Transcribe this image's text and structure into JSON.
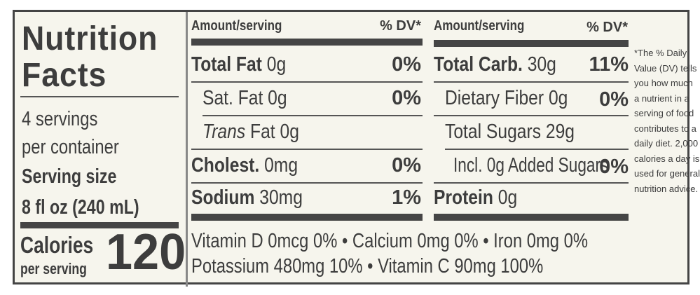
{
  "title_line1": "Nutrition",
  "title_line2": "Facts",
  "servings_line1": "4 servings",
  "servings_line2": "per container",
  "serving_size_label": "Serving size",
  "serving_size_value": "8 fl oz (240 mL)",
  "calories_label": "Calories",
  "calories_sub": "per serving",
  "calories_value": "120",
  "left_header": {
    "amount": "Amount/serving",
    "dv": "% DV*"
  },
  "right_header": {
    "amount": "Amount/serving",
    "dv": "% DV*"
  },
  "left_rows": [
    {
      "name": "Total Fat",
      "amount": "0g",
      "dv": "0%"
    },
    {
      "name": "Sat. Fat",
      "amount": "0g",
      "dv": "0%"
    },
    {
      "name_italic": "Trans",
      "name": "Fat",
      "amount": "0g",
      "dv": ""
    },
    {
      "name": "Cholest.",
      "amount": "0mg",
      "dv": "0%"
    },
    {
      "name": "Sodium",
      "amount": "30mg",
      "dv": "1%"
    }
  ],
  "right_rows": [
    {
      "name": "Total Carb.",
      "amount": "30g",
      "dv": "11%"
    },
    {
      "name": "Dietary Fiber",
      "amount": "0g",
      "dv": "0%"
    },
    {
      "name": "Total Sugars",
      "amount": "29g",
      "dv": ""
    },
    {
      "name": "Incl. 0g Added Sugars",
      "amount": "",
      "dv": "0%"
    },
    {
      "name": "Protein",
      "amount": "0g",
      "dv": ""
    }
  ],
  "vitamins_line1": "Vitamin D 0mcg 0% • Calcium 0mg 0% • Iron 0mg 0%",
  "vitamins_line2": "Potassium 480mg 10% • Vitamin C 90mg 100%",
  "footnote": [
    "*The % Daily",
    "Value (DV) tells",
    "you how much",
    "a nutrient in a",
    "serving of food",
    "contributes to a",
    "daily diet. 2,000",
    "calories a day is",
    "used for general",
    "nutrition advice."
  ]
}
